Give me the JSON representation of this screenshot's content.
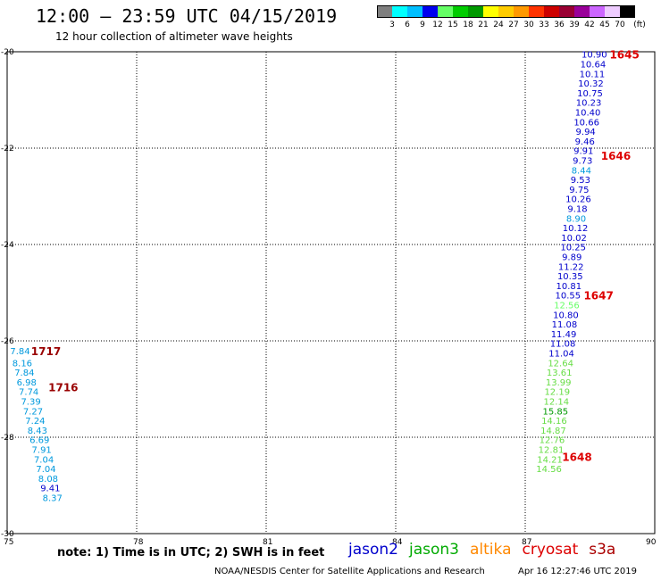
{
  "header": {
    "title": "12:00 – 23:59 UTC 04/15/2019",
    "subtitle": "12 hour collection of altimeter wave heights"
  },
  "footer": {
    "note": "note:  1) Time is in UTC;  2) SWH is in feet",
    "credit": "NOAA/NESDIS Center for Satellite Applications and Research",
    "timestamp": "Apr 16 12:27:46 UTC 2019"
  },
  "satellites": [
    {
      "name": "jason2",
      "color": "#0000cc"
    },
    {
      "name": "jason3",
      "color": "#00aa00"
    },
    {
      "name": "altika",
      "color": "#ff8800"
    },
    {
      "name": "cryosat",
      "color": "#dd0000"
    },
    {
      "name": "s3a",
      "color": "#aa0000"
    }
  ],
  "color_scale": {
    "unit": "(ft)",
    "bins": [
      {
        "label": "3",
        "color": "#7f7f7f"
      },
      {
        "label": "6",
        "color": "#00ffff"
      },
      {
        "label": "9",
        "color": "#00bfff"
      },
      {
        "label": "12",
        "color": "#0000ee"
      },
      {
        "label": "15",
        "color": "#66ff66"
      },
      {
        "label": "18",
        "color": "#00cc00"
      },
      {
        "label": "21",
        "color": "#009900"
      },
      {
        "label": "24",
        "color": "#ffff00"
      },
      {
        "label": "27",
        "color": "#ffcc00"
      },
      {
        "label": "30",
        "color": "#ff9900"
      },
      {
        "label": "33",
        "color": "#ff3300"
      },
      {
        "label": "36",
        "color": "#cc0000"
      },
      {
        "label": "39",
        "color": "#990033"
      },
      {
        "label": "42",
        "color": "#990099"
      },
      {
        "label": "45",
        "color": "#cc66ff"
      },
      {
        "label": "70",
        "color": "#eeccff"
      },
      {
        "label": "",
        "color": "#000000"
      }
    ]
  },
  "chart_data": {
    "type": "scatter",
    "xlim": [
      75,
      90
    ],
    "ylim": [
      -30,
      -20
    ],
    "x_ticks": [
      "75",
      "78",
      "81",
      "84",
      "87",
      "90"
    ],
    "y_ticks": [
      "-20",
      "-22",
      "-24",
      "-26",
      "-28",
      "-30"
    ],
    "grid": true,
    "tracks": [
      {
        "points": [
          {
            "lon": 88.6,
            "lat": -20.05,
            "v": "10.90",
            "c": "#0000cc"
          },
          {
            "lon": 88.57,
            "lat": -20.25,
            "v": "10.64",
            "c": "#0000cc"
          },
          {
            "lon": 88.55,
            "lat": -20.45,
            "v": "10.11",
            "c": "#0000cc"
          },
          {
            "lon": 88.52,
            "lat": -20.65,
            "v": "10.32",
            "c": "#0000cc"
          },
          {
            "lon": 88.5,
            "lat": -20.85,
            "v": "10.75",
            "c": "#0000cc"
          },
          {
            "lon": 88.47,
            "lat": -21.05,
            "v": "10.23",
            "c": "#0000cc"
          },
          {
            "lon": 88.45,
            "lat": -21.25,
            "v": "10.40",
            "c": "#0000cc"
          },
          {
            "lon": 88.42,
            "lat": -21.45,
            "v": "10.66",
            "c": "#0000cc"
          },
          {
            "lon": 88.4,
            "lat": -21.65,
            "v": "9.94",
            "c": "#0000cc"
          },
          {
            "lon": 88.38,
            "lat": -21.85,
            "v": "9.46",
            "c": "#0000cc"
          },
          {
            "lon": 88.35,
            "lat": -22.05,
            "v": "9.91",
            "c": "#0000cc"
          },
          {
            "lon": 88.33,
            "lat": -22.25,
            "v": "9.73",
            "c": "#0000cc"
          },
          {
            "lon": 88.3,
            "lat": -22.45,
            "v": "8.44",
            "c": "#0099dd"
          },
          {
            "lon": 88.28,
            "lat": -22.65,
            "v": "9.53",
            "c": "#0000cc"
          },
          {
            "lon": 88.25,
            "lat": -22.85,
            "v": "9.75",
            "c": "#0000cc"
          },
          {
            "lon": 88.23,
            "lat": -23.05,
            "v": "10.26",
            "c": "#0000cc"
          },
          {
            "lon": 88.21,
            "lat": -23.25,
            "v": "9.18",
            "c": "#0000cc"
          },
          {
            "lon": 88.18,
            "lat": -23.45,
            "v": "8.90",
            "c": "#0099dd"
          },
          {
            "lon": 88.16,
            "lat": -23.65,
            "v": "10.12",
            "c": "#0000cc"
          },
          {
            "lon": 88.13,
            "lat": -23.85,
            "v": "10.02",
            "c": "#0000cc"
          },
          {
            "lon": 88.11,
            "lat": -24.05,
            "v": "10.25",
            "c": "#0000cc"
          },
          {
            "lon": 88.08,
            "lat": -24.25,
            "v": "9.89",
            "c": "#0000cc"
          },
          {
            "lon": 88.06,
            "lat": -24.45,
            "v": "11.22",
            "c": "#0000cc"
          },
          {
            "lon": 88.04,
            "lat": -24.65,
            "v": "10.35",
            "c": "#0000cc"
          },
          {
            "lon": 88.01,
            "lat": -24.85,
            "v": "10.81",
            "c": "#0000cc"
          },
          {
            "lon": 87.99,
            "lat": -25.05,
            "v": "10.55",
            "c": "#0000cc"
          },
          {
            "lon": 87.96,
            "lat": -25.25,
            "v": "12.56",
            "c": "#66ff66"
          },
          {
            "lon": 87.94,
            "lat": -25.45,
            "v": "10.80",
            "c": "#0000cc"
          },
          {
            "lon": 87.91,
            "lat": -25.65,
            "v": "11.08",
            "c": "#0000cc"
          },
          {
            "lon": 87.89,
            "lat": -25.85,
            "v": "11.49",
            "c": "#0000cc"
          },
          {
            "lon": 87.87,
            "lat": -26.05,
            "v": "11.08",
            "c": "#0000cc"
          },
          {
            "lon": 87.84,
            "lat": -26.25,
            "v": "11.04",
            "c": "#0000cc"
          },
          {
            "lon": 87.82,
            "lat": -26.45,
            "v": "12.64",
            "c": "#66dd44"
          },
          {
            "lon": 87.79,
            "lat": -26.65,
            "v": "13.61",
            "c": "#66dd44"
          },
          {
            "lon": 87.77,
            "lat": -26.85,
            "v": "13.99",
            "c": "#66dd44"
          },
          {
            "lon": 87.74,
            "lat": -27.05,
            "v": "12.19",
            "c": "#66dd44"
          },
          {
            "lon": 87.72,
            "lat": -27.25,
            "v": "12.14",
            "c": "#66dd44"
          },
          {
            "lon": 87.7,
            "lat": -27.45,
            "v": "15.85",
            "c": "#009900"
          },
          {
            "lon": 87.67,
            "lat": -27.65,
            "v": "14.16",
            "c": "#66dd44"
          },
          {
            "lon": 87.65,
            "lat": -27.85,
            "v": "14.87",
            "c": "#66dd44"
          },
          {
            "lon": 87.62,
            "lat": -28.05,
            "v": "12.76",
            "c": "#66dd44"
          },
          {
            "lon": 87.6,
            "lat": -28.25,
            "v": "12.81",
            "c": "#66dd44"
          },
          {
            "lon": 87.57,
            "lat": -28.45,
            "v": "14.21",
            "c": "#66dd44"
          },
          {
            "lon": 87.55,
            "lat": -28.65,
            "v": "14.56",
            "c": "#66dd44"
          }
        ]
      },
      {
        "points": [
          {
            "lon": 75.3,
            "lat": -26.2,
            "v": "7.84",
            "c": "#0099dd"
          },
          {
            "lon": 75.35,
            "lat": -26.45,
            "v": "8.16",
            "c": "#0099dd"
          },
          {
            "lon": 75.4,
            "lat": -26.65,
            "v": "7.84",
            "c": "#0099dd"
          },
          {
            "lon": 75.45,
            "lat": -26.85,
            "v": "6.98",
            "c": "#0099dd"
          },
          {
            "lon": 75.5,
            "lat": -27.05,
            "v": "7.74",
            "c": "#0099dd"
          },
          {
            "lon": 75.55,
            "lat": -27.25,
            "v": "7.39",
            "c": "#0099dd"
          },
          {
            "lon": 75.6,
            "lat": -27.45,
            "v": "7.27",
            "c": "#0099dd"
          },
          {
            "lon": 75.65,
            "lat": -27.65,
            "v": "7.24",
            "c": "#0099dd"
          },
          {
            "lon": 75.7,
            "lat": -27.85,
            "v": "8.43",
            "c": "#0099dd"
          },
          {
            "lon": 75.75,
            "lat": -28.05,
            "v": "6.69",
            "c": "#0099dd"
          },
          {
            "lon": 75.8,
            "lat": -28.25,
            "v": "7.91",
            "c": "#0099dd"
          },
          {
            "lon": 75.85,
            "lat": -28.45,
            "v": "7.04",
            "c": "#0099dd"
          },
          {
            "lon": 75.9,
            "lat": -28.65,
            "v": "7.04",
            "c": "#0099dd"
          },
          {
            "lon": 75.95,
            "lat": -28.85,
            "v": "8.08",
            "c": "#0099dd"
          },
          {
            "lon": 76.0,
            "lat": -29.05,
            "v": "9.41",
            "c": "#0000cc"
          },
          {
            "lon": 76.05,
            "lat": -29.25,
            "v": "8.37",
            "c": "#0099dd"
          }
        ]
      }
    ],
    "time_labels": [
      {
        "lon": 89.3,
        "lat": -20.05,
        "t": "1645",
        "c": "#dd0000"
      },
      {
        "lon": 89.1,
        "lat": -22.15,
        "t": "1646",
        "c": "#dd0000"
      },
      {
        "lon": 88.7,
        "lat": -25.05,
        "t": "1647",
        "c": "#dd0000"
      },
      {
        "lon": 88.2,
        "lat": -28.4,
        "t": "1648",
        "c": "#dd0000"
      },
      {
        "lon": 75.9,
        "lat": -26.2,
        "t": "1717",
        "c": "#990000"
      },
      {
        "lon": 76.3,
        "lat": -26.95,
        "t": "1716",
        "c": "#990000"
      }
    ]
  }
}
